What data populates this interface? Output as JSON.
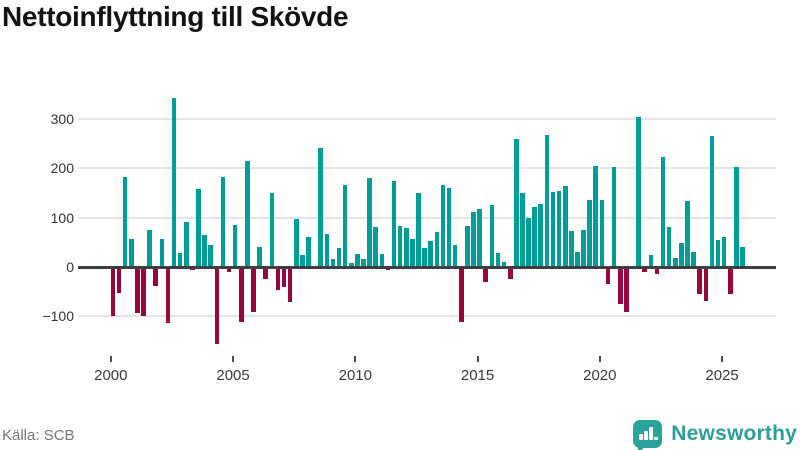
{
  "title": "Nettoinflyttning till Skövde",
  "source": {
    "label": "Källa: SCB"
  },
  "branding": {
    "name": "Newsworthy",
    "brand_color": "#2aa096",
    "icon": "bar-chart-speech-bubble"
  },
  "chart_data": {
    "type": "bar",
    "title": "Nettoinflyttning till Skövde",
    "xlabel": "",
    "ylabel": "",
    "frequency": "quarterly",
    "start_period": "2000 Q1",
    "end_period": "2025 Q4",
    "x_tick_labels": [
      "2000",
      "2005",
      "2010",
      "2015",
      "2020",
      "2025"
    ],
    "y_ticks": [
      300,
      200,
      100,
      0,
      -100
    ],
    "y_tick_labels": [
      "300",
      "200",
      "100",
      "0",
      "−100"
    ],
    "ylim": [
      -170,
      350
    ],
    "grid": "horizontal",
    "legend": "none",
    "colors": {
      "positive": "#009e96",
      "negative": "#98063d"
    },
    "series": [
      {
        "name": "Nettoinflyttning",
        "values": [
          -100,
          -53,
          183,
          56,
          -93,
          -100,
          76,
          -39,
          56,
          -114,
          343,
          28,
          91,
          -7,
          158,
          64,
          45,
          -157,
          183,
          -10,
          85,
          -111,
          215,
          -91,
          40,
          -24,
          150,
          -47,
          -40,
          -71,
          97,
          25,
          61,
          2,
          242,
          67,
          17,
          39,
          167,
          9,
          27,
          17,
          181,
          82,
          27,
          -7,
          175,
          84,
          80,
          56,
          151,
          39,
          53,
          71,
          167,
          161,
          45,
          -111,
          84,
          111,
          118,
          -31,
          126,
          29,
          11,
          -24,
          259,
          151,
          100,
          121,
          128,
          267,
          152,
          155,
          165,
          73,
          30,
          75,
          136,
          205,
          136,
          -34,
          203,
          -75,
          -91,
          0,
          305,
          -10,
          24,
          -15,
          223,
          81,
          19,
          48,
          134,
          31,
          -54,
          -69,
          266,
          55,
          60,
          -54,
          202,
          40
        ]
      }
    ]
  }
}
